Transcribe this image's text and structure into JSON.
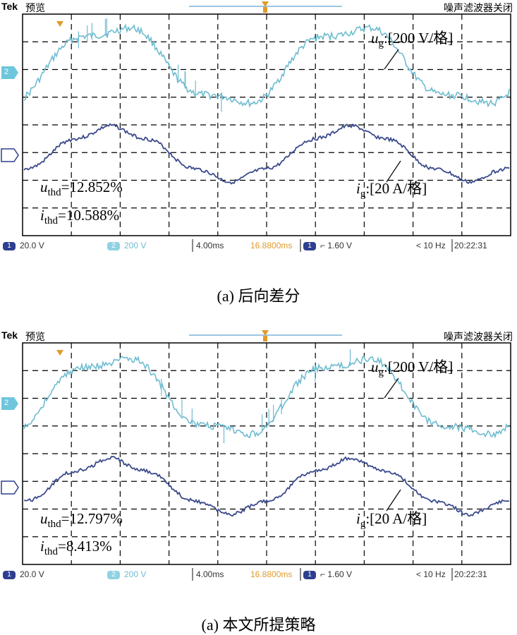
{
  "panels": [
    {
      "brand": "Tek",
      "mode": "预览",
      "filter": "噪声滤波器关闭",
      "ch2_marker": "2",
      "ch1_marker": "1",
      "voltage_label": {
        "sym": "u",
        "sub": "g",
        "rest": ":[200 V/格]"
      },
      "current_label": {
        "sym": "i",
        "sub": "g",
        "rest": ":[20 A/格]"
      },
      "uthd": {
        "sym": "u",
        "sub": "thd",
        "rest": "=12.852%"
      },
      "ithd": {
        "sym": "i",
        "sub": "thd",
        "rest": "=10.588%"
      },
      "status": {
        "ch1_num": "1",
        "ch1_scale": "20.0 V",
        "ch2_num": "2",
        "ch2_scale": "200 V",
        "timebase": "4.00ms",
        "position": "16.8800ms",
        "trig_num": "1",
        "trig_level": "1.60 V",
        "freq": "< 10 Hz",
        "clock": "20:22:31"
      },
      "caption": "(a) 后向差分"
    },
    {
      "brand": "Tek",
      "mode": "预览",
      "filter": "噪声滤波器关闭",
      "ch2_marker": "2",
      "ch1_marker": "1",
      "voltage_label": {
        "sym": "u",
        "sub": "g",
        "rest": ":[200 V/格]"
      },
      "current_label": {
        "sym": "i",
        "sub": "g",
        "rest": ":[20 A/格]"
      },
      "uthd": {
        "sym": "u",
        "sub": "thd",
        "rest": "=12.797%"
      },
      "ithd": {
        "sym": "i",
        "sub": "thd",
        "rest": "=8.413%"
      },
      "status": {
        "ch1_num": "1",
        "ch1_scale": "20.0 V",
        "ch2_num": "2",
        "ch2_scale": "200 V",
        "timebase": "4.00ms",
        "position": "16.8800ms",
        "trig_num": "1",
        "trig_level": "1.60 V",
        "freq": "< 10 Hz",
        "clock": "20:22:31"
      },
      "caption": "(a) 本文所提策略"
    }
  ],
  "colors": {
    "voltage_trace": "#6fbcd0",
    "current_trace": "#3a4a8c",
    "grid": "#000000",
    "ch1": "#2d3f8f",
    "ch2": "#6fc6dc",
    "accent": "#e09a2a",
    "timeline": "#7fb2d6"
  }
}
